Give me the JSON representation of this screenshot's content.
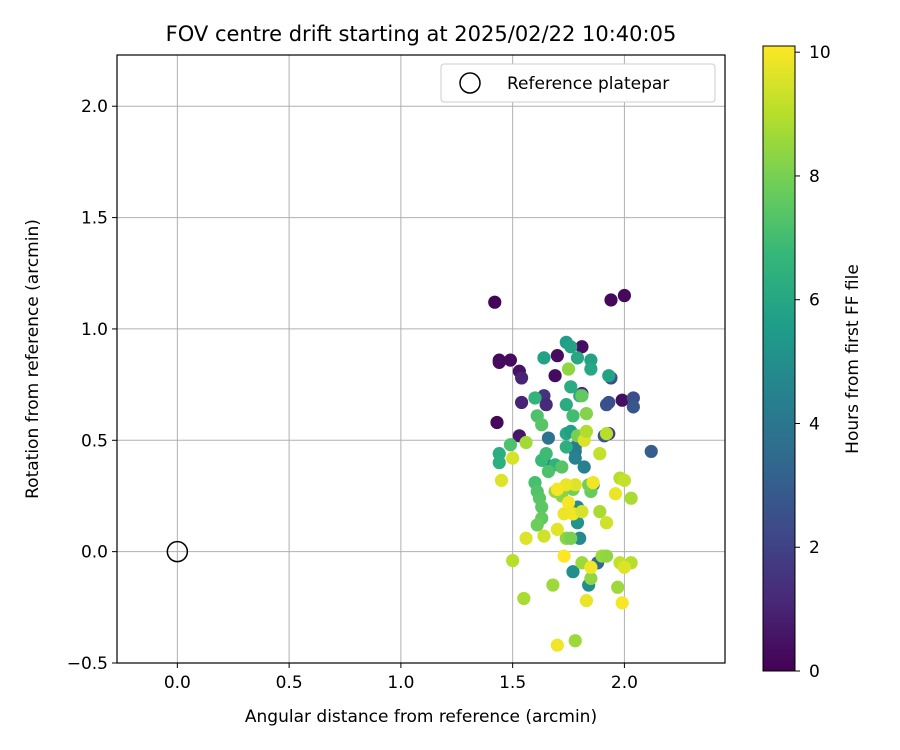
{
  "chart_data": {
    "type": "scatter",
    "title": "FOV centre drift starting at 2025/02/22 10:40:05",
    "xlabel": "Angular distance from reference (arcmin)",
    "ylabel": "Rotation from reference (arcmin)",
    "xlim": [
      -0.27,
      2.45
    ],
    "ylim": [
      -0.5,
      2.23
    ],
    "xticks": [
      "0.0",
      "0.5",
      "1.0",
      "1.5",
      "2.0"
    ],
    "xtick_values": [
      0.0,
      0.5,
      1.0,
      1.5,
      2.0
    ],
    "yticks": [
      "−0.5",
      "0.0",
      "0.5",
      "1.0",
      "1.5",
      "2.0"
    ],
    "ytick_values": [
      -0.5,
      0.0,
      0.5,
      1.0,
      1.5,
      2.0
    ],
    "grid": true,
    "legend": {
      "placement": "top-right",
      "entries": [
        "Reference platepar"
      ]
    },
    "reference": {
      "x": 0.0,
      "y": 0.0
    },
    "colorbar": {
      "label": "Hours from first FF file",
      "range": [
        0,
        10.1
      ],
      "ticks": [
        "0",
        "2",
        "4",
        "6",
        "8",
        "10"
      ],
      "tick_values": [
        0,
        2,
        4,
        6,
        8,
        10
      ],
      "colormap": "viridis",
      "colors": [
        "#440154",
        "#482878",
        "#3e4989",
        "#31688e",
        "#26828e",
        "#1f9e89",
        "#35b779",
        "#6ece58",
        "#b5de2b",
        "#fde725"
      ]
    },
    "points": [
      {
        "x": 1.42,
        "y": 1.12,
        "h": 0.1
      },
      {
        "x": 1.44,
        "y": 0.86,
        "h": 0.2
      },
      {
        "x": 1.44,
        "y": 0.85,
        "h": 0.3
      },
      {
        "x": 1.49,
        "y": 0.86,
        "h": 0.3
      },
      {
        "x": 1.53,
        "y": 0.81,
        "h": 0.5
      },
      {
        "x": 1.54,
        "y": 0.78,
        "h": 1.0
      },
      {
        "x": 1.43,
        "y": 0.58,
        "h": 0.2
      },
      {
        "x": 1.54,
        "y": 0.67,
        "h": 1.0
      },
      {
        "x": 1.53,
        "y": 0.52,
        "h": 0.6
      },
      {
        "x": 1.94,
        "y": 1.13,
        "h": 0.2
      },
      {
        "x": 2.0,
        "y": 1.15,
        "h": 0.2
      },
      {
        "x": 1.69,
        "y": 0.79,
        "h": 0.3
      },
      {
        "x": 1.7,
        "y": 0.88,
        "h": 0.3
      },
      {
        "x": 1.81,
        "y": 0.92,
        "h": 0.4
      },
      {
        "x": 1.99,
        "y": 0.68,
        "h": 0.4
      },
      {
        "x": 1.64,
        "y": 0.7,
        "h": 1.5
      },
      {
        "x": 1.65,
        "y": 0.66,
        "h": 1.2
      },
      {
        "x": 1.81,
        "y": 0.71,
        "h": 1.4
      },
      {
        "x": 1.94,
        "y": 0.78,
        "h": 2.5
      },
      {
        "x": 1.92,
        "y": 0.66,
        "h": 2.6
      },
      {
        "x": 1.93,
        "y": 0.67,
        "h": 2.5
      },
      {
        "x": 2.04,
        "y": 0.69,
        "h": 2.4
      },
      {
        "x": 2.04,
        "y": 0.65,
        "h": 2.7
      },
      {
        "x": 1.93,
        "y": 0.53,
        "h": 1.8
      },
      {
        "x": 1.91,
        "y": 0.52,
        "h": 2.8
      },
      {
        "x": 2.12,
        "y": 0.45,
        "h": 3.0
      },
      {
        "x": 1.66,
        "y": 0.51,
        "h": 3.8
      },
      {
        "x": 1.78,
        "y": 0.45,
        "h": 3.8
      },
      {
        "x": 1.82,
        "y": 0.38,
        "h": 4.4
      },
      {
        "x": 1.78,
        "y": 0.47,
        "h": 4.2
      },
      {
        "x": 1.64,
        "y": 0.41,
        "h": 4.6
      },
      {
        "x": 1.78,
        "y": 0.42,
        "h": 4.5
      },
      {
        "x": 1.79,
        "y": 0.2,
        "h": 4.8
      },
      {
        "x": 1.8,
        "y": 0.06,
        "h": 4.8
      },
      {
        "x": 1.79,
        "y": 0.13,
        "h": 5.2
      },
      {
        "x": 1.86,
        "y": 0.3,
        "h": 5.0
      },
      {
        "x": 1.88,
        "y": -0.05,
        "h": 3.5
      },
      {
        "x": 1.84,
        "y": -0.15,
        "h": 4.9
      },
      {
        "x": 1.77,
        "y": -0.09,
        "h": 5.0
      },
      {
        "x": 1.74,
        "y": 0.94,
        "h": 5.6
      },
      {
        "x": 1.76,
        "y": 0.92,
        "h": 5.8
      },
      {
        "x": 1.85,
        "y": 0.86,
        "h": 5.8
      },
      {
        "x": 1.79,
        "y": 0.87,
        "h": 6.0
      },
      {
        "x": 1.64,
        "y": 0.87,
        "h": 5.8
      },
      {
        "x": 1.85,
        "y": 0.82,
        "h": 6.0
      },
      {
        "x": 1.93,
        "y": 0.79,
        "h": 5.8
      },
      {
        "x": 1.76,
        "y": 0.74,
        "h": 6.2
      },
      {
        "x": 1.8,
        "y": 0.7,
        "h": 6.3
      },
      {
        "x": 1.74,
        "y": 0.66,
        "h": 6.2
      },
      {
        "x": 1.6,
        "y": 0.69,
        "h": 6.6
      },
      {
        "x": 1.77,
        "y": 0.61,
        "h": 7.0
      },
      {
        "x": 1.74,
        "y": 0.53,
        "h": 6.0
      },
      {
        "x": 1.76,
        "y": 0.54,
        "h": 5.7
      },
      {
        "x": 1.74,
        "y": 0.47,
        "h": 6.4
      },
      {
        "x": 1.69,
        "y": 0.39,
        "h": 6.5
      },
      {
        "x": 1.63,
        "y": 0.41,
        "h": 6.8
      },
      {
        "x": 1.65,
        "y": 0.44,
        "h": 6.9
      },
      {
        "x": 1.44,
        "y": 0.44,
        "h": 6.3
      },
      {
        "x": 1.44,
        "y": 0.4,
        "h": 6.4
      },
      {
        "x": 1.49,
        "y": 0.48,
        "h": 7.2
      },
      {
        "x": 1.61,
        "y": 0.61,
        "h": 7.2
      },
      {
        "x": 1.63,
        "y": 0.57,
        "h": 7.4
      },
      {
        "x": 1.82,
        "y": 0.52,
        "h": 7.8
      },
      {
        "x": 1.79,
        "y": 0.52,
        "h": 8.0
      },
      {
        "x": 1.83,
        "y": 0.62,
        "h": 8.2
      },
      {
        "x": 1.81,
        "y": 0.7,
        "h": 7.6
      },
      {
        "x": 1.75,
        "y": 0.82,
        "h": 8.4
      },
      {
        "x": 1.72,
        "y": 0.38,
        "h": 7.4
      },
      {
        "x": 1.66,
        "y": 0.36,
        "h": 7.2
      },
      {
        "x": 1.6,
        "y": 0.31,
        "h": 7.1
      },
      {
        "x": 1.61,
        "y": 0.27,
        "h": 7.3
      },
      {
        "x": 1.62,
        "y": 0.24,
        "h": 7.4
      },
      {
        "x": 1.63,
        "y": 0.2,
        "h": 7.5
      },
      {
        "x": 1.63,
        "y": 0.15,
        "h": 7.6
      },
      {
        "x": 1.61,
        "y": 0.12,
        "h": 7.8
      },
      {
        "x": 1.77,
        "y": 0.28,
        "h": 7.9
      },
      {
        "x": 1.72,
        "y": 0.25,
        "h": 8.3
      },
      {
        "x": 1.69,
        "y": 0.27,
        "h": 8.5
      },
      {
        "x": 1.85,
        "y": 0.27,
        "h": 7.7
      },
      {
        "x": 1.84,
        "y": 0.3,
        "h": 7.9
      },
      {
        "x": 1.74,
        "y": 0.06,
        "h": 8.3
      },
      {
        "x": 1.76,
        "y": 0.06,
        "h": 8.0
      },
      {
        "x": 1.81,
        "y": -0.05,
        "h": 8.6
      },
      {
        "x": 1.85,
        "y": -0.12,
        "h": 8.4
      },
      {
        "x": 1.89,
        "y": 0.18,
        "h": 8.8
      },
      {
        "x": 1.92,
        "y": 0.13,
        "h": 9.4
      },
      {
        "x": 2.03,
        "y": 0.24,
        "h": 8.8
      },
      {
        "x": 1.98,
        "y": 0.33,
        "h": 9.0
      },
      {
        "x": 2.0,
        "y": 0.32,
        "h": 9.2
      },
      {
        "x": 1.89,
        "y": 0.44,
        "h": 9.2
      },
      {
        "x": 1.92,
        "y": 0.53,
        "h": 9.0
      },
      {
        "x": 1.82,
        "y": 0.5,
        "h": 9.6
      },
      {
        "x": 1.83,
        "y": 0.54,
        "h": 8.9
      },
      {
        "x": 1.56,
        "y": 0.49,
        "h": 8.7
      },
      {
        "x": 1.5,
        "y": 0.42,
        "h": 9.5
      },
      {
        "x": 1.45,
        "y": 0.32,
        "h": 9.6
      },
      {
        "x": 1.56,
        "y": 0.06,
        "h": 9.6
      },
      {
        "x": 1.64,
        "y": 0.07,
        "h": 9.4
      },
      {
        "x": 1.7,
        "y": 0.1,
        "h": 9.7
      },
      {
        "x": 1.73,
        "y": 0.17,
        "h": 9.8
      },
      {
        "x": 1.75,
        "y": 0.22,
        "h": 10.0
      },
      {
        "x": 1.77,
        "y": 0.17,
        "h": 9.9
      },
      {
        "x": 1.81,
        "y": 0.18,
        "h": 9.5
      },
      {
        "x": 1.78,
        "y": 0.3,
        "h": 9.6
      },
      {
        "x": 1.74,
        "y": 0.3,
        "h": 9.8
      },
      {
        "x": 1.7,
        "y": 0.28,
        "h": 10.0
      },
      {
        "x": 1.86,
        "y": 0.31,
        "h": 9.9
      },
      {
        "x": 1.96,
        "y": 0.26,
        "h": 9.8
      },
      {
        "x": 1.9,
        "y": -0.02,
        "h": 8.6
      },
      {
        "x": 1.92,
        "y": -0.02,
        "h": 8.4
      },
      {
        "x": 1.98,
        "y": -0.05,
        "h": 9.2
      },
      {
        "x": 2.03,
        "y": -0.05,
        "h": 9.0
      },
      {
        "x": 2.0,
        "y": -0.07,
        "h": 9.6
      },
      {
        "x": 1.97,
        "y": -0.16,
        "h": 8.6
      },
      {
        "x": 1.99,
        "y": -0.23,
        "h": 10.0
      },
      {
        "x": 1.83,
        "y": -0.22,
        "h": 9.8
      },
      {
        "x": 1.73,
        "y": -0.02,
        "h": 10.1
      },
      {
        "x": 1.85,
        "y": -0.07,
        "h": 9.9
      },
      {
        "x": 1.5,
        "y": -0.04,
        "h": 9.0
      },
      {
        "x": 1.55,
        "y": -0.21,
        "h": 8.8
      },
      {
        "x": 1.68,
        "y": -0.15,
        "h": 8.6
      },
      {
        "x": 1.78,
        "y": -0.4,
        "h": 8.6
      },
      {
        "x": 1.7,
        "y": -0.42,
        "h": 9.9
      }
    ]
  }
}
